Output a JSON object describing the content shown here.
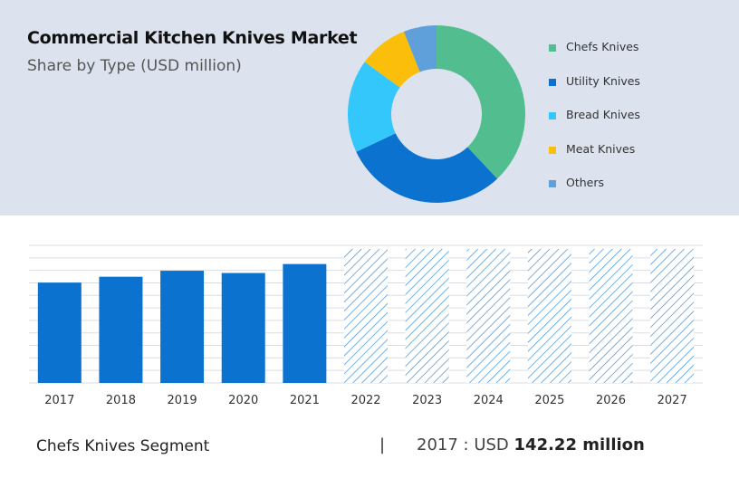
{
  "header": {
    "title": "Commercial Kitchen Knives Market",
    "subtitle": "Share by Type (USD million)"
  },
  "chart_data": [
    {
      "type": "pie",
      "style": "donut",
      "categories": [
        "Chefs Knives",
        "Utility Knives",
        "Bread Knives",
        "Meat Knives",
        "Others"
      ],
      "values": [
        38,
        30,
        17,
        9,
        6
      ],
      "colors": [
        "#52be8f",
        "#0b73cf",
        "#34c7fb",
        "#fbbf0b",
        "#5f9fda"
      ],
      "legend_position": "right"
    },
    {
      "type": "bar",
      "categories": [
        "2017",
        "2018",
        "2019",
        "2020",
        "2021",
        "2022",
        "2023",
        "2024",
        "2025",
        "2026",
        "2027"
      ],
      "values": [
        142.22,
        150.5,
        159.0,
        155.8,
        168.5,
        null,
        null,
        null,
        null,
        null,
        null
      ],
      "forecast_categories": [
        "2022",
        "2023",
        "2024",
        "2025",
        "2026",
        "2027"
      ],
      "forecast_style": "hatched",
      "bar_color": "#0b73cf",
      "ylim": [
        0,
        195
      ],
      "grid": true,
      "y_tick_labels": false
    }
  ],
  "footer": {
    "segment_label": "Chefs Knives Segment",
    "separator": "|",
    "year_text": "2017 : USD",
    "value_text": "142.22 million"
  }
}
